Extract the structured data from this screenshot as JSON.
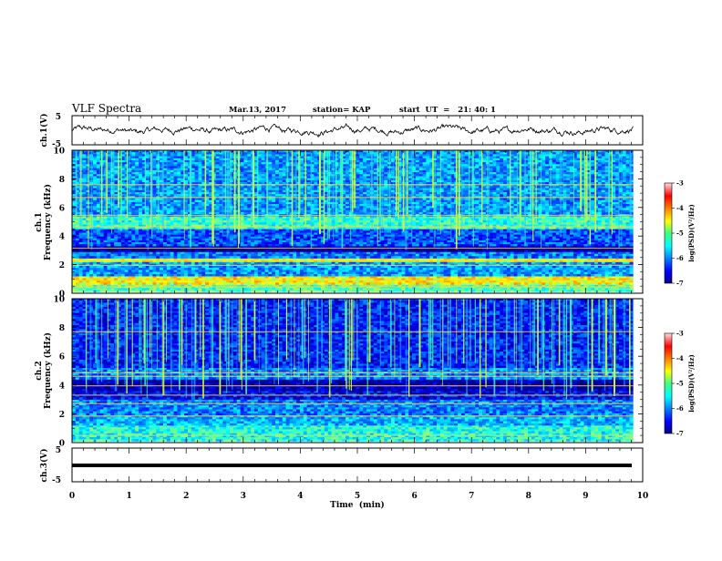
{
  "header": {
    "title": "VLF Spectra",
    "date": "Mar.13, 2017",
    "station": "station= KAP",
    "start_ut": "start  UT  =   21: 40: 1"
  },
  "chart_data": [
    {
      "type": "line",
      "panel": "ch1-waveform",
      "ylabel": "ch.1(V)",
      "xlabel": "",
      "xlim": [
        0,
        10
      ],
      "ylim": [
        -5,
        5
      ],
      "yticks": [
        "5",
        "-5"
      ],
      "approx_range": [
        -1.5,
        1.8
      ],
      "description": ""
    },
    {
      "type": "heatmap",
      "panel": "ch1-spectrogram",
      "ylabel": "ch.1\nFrequency (kHz)",
      "xlim": [
        0,
        10
      ],
      "ylim": [
        0,
        10
      ],
      "yticks": [
        "0",
        "2",
        "4",
        "6",
        "8",
        "10"
      ],
      "data_x_end": 9.83,
      "bands_khz": [
        {
          "f": [
            0.1,
            0.6
          ],
          "level": -5.2
        },
        {
          "f": [
            0.6,
            1.2
          ],
          "level": -4.5
        },
        {
          "f": [
            1.2,
            2.2
          ],
          "level": -5.9
        },
        {
          "f": [
            2.2,
            2.45
          ],
          "level": -4.6
        },
        {
          "f": [
            2.45,
            2.9
          ],
          "level": -6.0
        },
        {
          "f": [
            2.9,
            3.3
          ],
          "level": -6.9
        },
        {
          "f": [
            3.3,
            4.5
          ],
          "level": -6.2
        },
        {
          "f": [
            4.5,
            5.4
          ],
          "level": -5.3
        },
        {
          "f": [
            5.4,
            10.0
          ],
          "level": -5.9
        }
      ],
      "colorbar": {
        "label": "log(PSD)(V²/Hz)",
        "ticks": [
          "-3",
          "-4",
          "-5",
          "-6",
          "-7"
        ],
        "range": [
          -7,
          -3
        ]
      }
    },
    {
      "type": "heatmap",
      "panel": "ch2-spectrogram",
      "ylabel": "ch.2\nFrequency (kHz)",
      "xlim": [
        0,
        10
      ],
      "ylim": [
        0,
        10
      ],
      "yticks": [
        "0",
        "2",
        "4",
        "6",
        "8",
        "10"
      ],
      "data_x_end": 9.83,
      "bands_khz": [
        {
          "f": [
            0.1,
            1.2
          ],
          "level": -5.4
        },
        {
          "f": [
            1.2,
            1.9
          ],
          "level": -5.8
        },
        {
          "f": [
            1.9,
            3.0
          ],
          "level": -6.0
        },
        {
          "f": [
            3.0,
            3.6
          ],
          "level": -6.5
        },
        {
          "f": [
            3.6,
            4.4
          ],
          "level": -6.8
        },
        {
          "f": [
            4.4,
            5.2
          ],
          "level": -6.0
        },
        {
          "f": [
            5.2,
            10.0
          ],
          "level": -6.4
        }
      ],
      "colorbar": {
        "label": "log(PSD)(V²/Hz)",
        "ticks": [
          "-3",
          "-4",
          "-5",
          "-6",
          "-7"
        ],
        "range": [
          -7,
          -3
        ]
      }
    },
    {
      "type": "line",
      "panel": "ch3-waveform",
      "ylabel": "ch.3(V)",
      "xlabel": "Time  (min)",
      "xlim": [
        0,
        10
      ],
      "ylim": [
        -5,
        5
      ],
      "yticks": [
        "5",
        "-5"
      ],
      "xticks": [
        "0",
        "1",
        "2",
        "3",
        "4",
        "5",
        "6",
        "7",
        "8",
        "9",
        "10"
      ],
      "constant_value": 0
    }
  ]
}
